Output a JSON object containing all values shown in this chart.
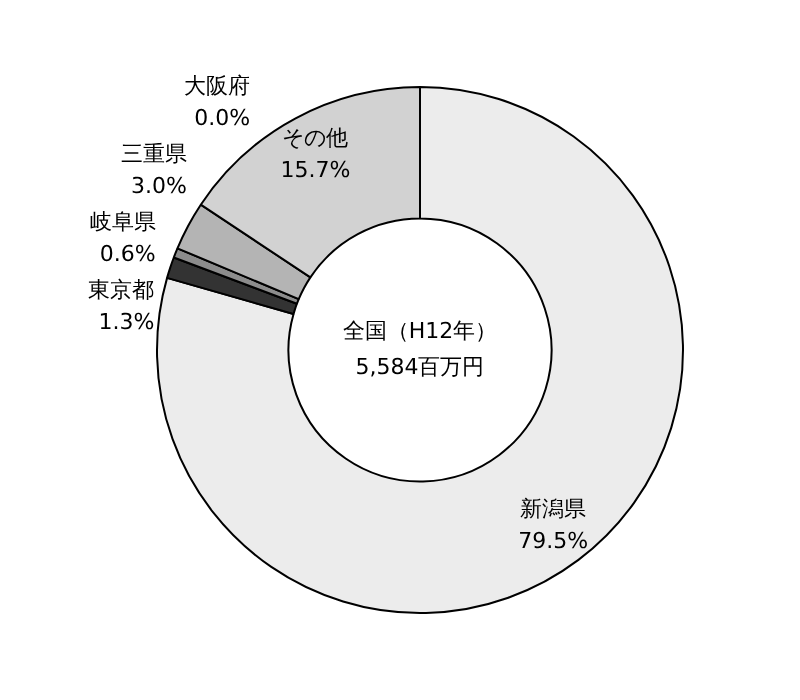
{
  "chart_data": {
    "type": "donut",
    "categories": [
      "新潟県",
      "東京都",
      "岐阜県",
      "三重県",
      "大阪府",
      "その他"
    ],
    "values": [
      79.5,
      1.3,
      0.6,
      3.0,
      0.0,
      15.7
    ],
    "colors": [
      "#ececec",
      "#333333",
      "#8c8c8c",
      "#b4b4b4",
      "#ffffff",
      "#d2d2d2"
    ],
    "value_labels": [
      "79.5%",
      "1.3%",
      "0.6%",
      "3.0%",
      "0.0%",
      "15.7%"
    ],
    "annotations": [
      "全国（H12年）",
      "5,584百万円"
    ]
  }
}
